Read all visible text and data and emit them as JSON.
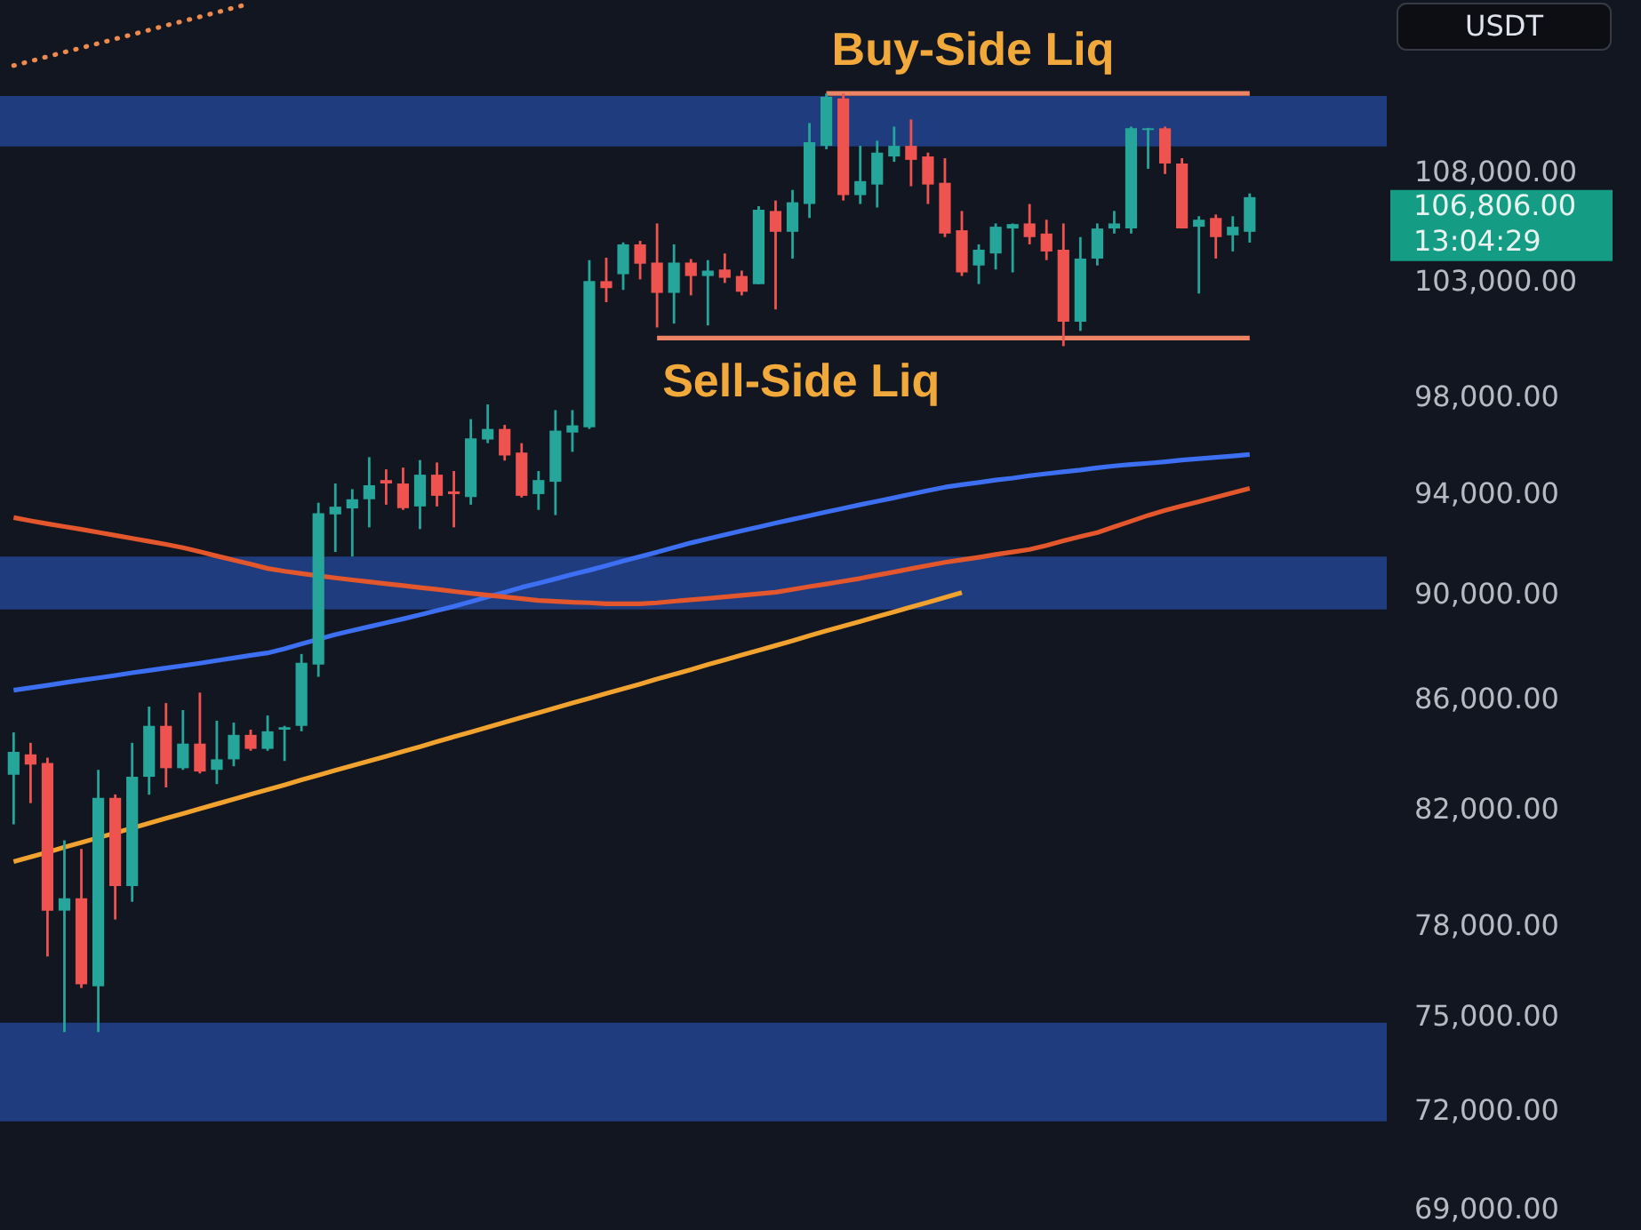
{
  "chart_data": {
    "type": "candlestick",
    "categories": [
      null,
      null,
      null,
      null,
      null,
      null,
      null,
      null,
      null,
      null,
      null,
      null,
      null,
      null,
      null,
      null,
      null,
      null,
      null,
      null,
      null,
      null,
      null,
      null,
      null,
      null,
      null,
      null,
      null,
      null,
      null,
      null,
      null,
      null,
      null,
      null,
      null,
      null,
      null,
      null,
      null,
      null,
      null,
      null,
      null,
      null,
      null,
      null,
      null,
      null,
      null,
      null,
      null,
      null,
      null,
      null,
      null,
      null,
      null,
      null,
      null,
      null,
      null,
      null,
      null,
      null,
      null,
      null,
      null,
      null,
      null,
      null,
      null,
      null
    ],
    "ohlc": [
      [
        83220,
        84760,
        81460,
        84050
      ],
      [
        83960,
        84380,
        82210,
        83590
      ],
      [
        83650,
        83840,
        76940,
        78480
      ],
      [
        78480,
        80900,
        74470,
        78900
      ],
      [
        78900,
        80600,
        75900,
        76020
      ],
      [
        75960,
        83400,
        74470,
        82400
      ],
      [
        82400,
        82520,
        78180,
        79320
      ],
      [
        79320,
        84380,
        78780,
        83150
      ],
      [
        83150,
        85710,
        82510,
        85000
      ],
      [
        85000,
        85840,
        82770,
        83460
      ],
      [
        83460,
        85580,
        83400,
        84350
      ],
      [
        84350,
        86230,
        83270,
        83340
      ],
      [
        83400,
        85190,
        82890,
        83780
      ],
      [
        83780,
        85120,
        83530,
        84670
      ],
      [
        84670,
        84860,
        84090,
        84160
      ],
      [
        84160,
        85380,
        84090,
        84800
      ],
      [
        84860,
        85000,
        83720,
        84950
      ],
      [
        85000,
        87680,
        84800,
        87350
      ],
      [
        87280,
        93600,
        86820,
        93180
      ],
      [
        93130,
        94380,
        91630,
        93440
      ],
      [
        93370,
        94150,
        91450,
        93740
      ],
      [
        93740,
        95460,
        92610,
        94310
      ],
      [
        94520,
        94960,
        93520,
        94380
      ],
      [
        94380,
        95030,
        93310,
        93380
      ],
      [
        93450,
        95340,
        92540,
        94740
      ],
      [
        94740,
        95240,
        93450,
        93880
      ],
      [
        94060,
        94890,
        92610,
        93950
      ],
      [
        93830,
        97040,
        93520,
        96240
      ],
      [
        96190,
        97660,
        96040,
        96630
      ],
      [
        96630,
        96800,
        95320,
        95530
      ],
      [
        95650,
        96040,
        93810,
        93880
      ],
      [
        93950,
        94890,
        93310,
        94520
      ],
      [
        94450,
        97420,
        93100,
        96560
      ],
      [
        96480,
        97420,
        95680,
        96780
      ],
      [
        96700,
        103940,
        96630,
        103000
      ],
      [
        103000,
        104050,
        102070,
        102690
      ],
      [
        103310,
        104740,
        102610,
        104650
      ],
      [
        104650,
        104810,
        103080,
        103780
      ],
      [
        103830,
        105600,
        100960,
        102480
      ],
      [
        102480,
        104650,
        101130,
        103830
      ],
      [
        103830,
        103990,
        102370,
        103230
      ],
      [
        103230,
        103940,
        101050,
        103470
      ],
      [
        103520,
        104240,
        102920,
        103150
      ],
      [
        103230,
        103470,
        102370,
        102530
      ],
      [
        102870,
        106390,
        102870,
        106230
      ],
      [
        106170,
        106650,
        101750,
        105220
      ],
      [
        105220,
        107140,
        104010,
        106570
      ],
      [
        106490,
        110280,
        105850,
        109370
      ],
      [
        109200,
        111700,
        109040,
        111540
      ],
      [
        111460,
        111700,
        106650,
        106900
      ],
      [
        106900,
        109200,
        106490,
        107550
      ],
      [
        107390,
        109440,
        106330,
        108880
      ],
      [
        108700,
        110110,
        108450,
        109200
      ],
      [
        109200,
        110450,
        107310,
        108540
      ],
      [
        108700,
        108880,
        106490,
        107390
      ],
      [
        107470,
        108620,
        104980,
        105140
      ],
      [
        105290,
        106170,
        103230,
        103390
      ],
      [
        103700,
        104650,
        102870,
        104410
      ],
      [
        104240,
        105600,
        103520,
        105450
      ],
      [
        105370,
        105600,
        103390,
        105570
      ],
      [
        105600,
        106490,
        104650,
        104980
      ],
      [
        105140,
        105770,
        103940,
        104330
      ],
      [
        104410,
        105600,
        100150,
        101210
      ],
      [
        101210,
        104980,
        100810,
        104010
      ],
      [
        104010,
        105600,
        103700,
        105370
      ],
      [
        105370,
        106170,
        105140,
        105600
      ],
      [
        105370,
        110110,
        105140,
        110030
      ],
      [
        109950,
        110050,
        108120,
        110030
      ],
      [
        110030,
        110110,
        107880,
        108370
      ],
      [
        108370,
        108620,
        105370,
        105370
      ],
      [
        105450,
        105930,
        102450,
        105770
      ],
      [
        105850,
        106010,
        104010,
        104980
      ],
      [
        105060,
        105930,
        104330,
        105450
      ],
      [
        105220,
        106980,
        104730,
        106806
      ]
    ],
    "colors": [
      "#26a69a",
      "#ef5350",
      "#ef5350",
      "#26a69a",
      "#ef5350",
      "#26a69a",
      "#ef5350",
      "#26a69a",
      "#26a69a",
      "#ef5350",
      "#26a69a",
      "#ef5350",
      "#26a69a",
      "#26a69a",
      "#ef5350",
      "#26a69a",
      "#26a69a",
      "#26a69a",
      "#26a69a",
      "#26a69a",
      "#26a69a",
      "#26a69a",
      "#ef5350",
      "#ef5350",
      "#26a69a",
      "#ef5350",
      "#ef5350",
      "#26a69a",
      "#26a69a",
      "#ef5350",
      "#ef5350",
      "#26a69a",
      "#26a69a",
      "#26a69a",
      "#26a69a",
      "#ef5350",
      "#26a69a",
      "#ef5350",
      "#ef5350",
      "#26a69a",
      "#ef5350",
      "#26a69a",
      "#ef5350",
      "#ef5350",
      "#26a69a",
      "#ef5350",
      "#26a69a",
      "#26a69a",
      "#26a69a",
      "#ef5350",
      "#26a69a",
      "#26a69a",
      "#26a69a",
      "#ef5350",
      "#ef5350",
      "#ef5350",
      "#ef5350",
      "#26a69a",
      "#26a69a",
      "#26a69a",
      "#ef5350",
      "#ef5350",
      "#ef5350",
      "#26a69a",
      "#26a69a",
      "#26a69a",
      "#26a69a",
      "#26a69a",
      "#ef5350",
      "#ef5350",
      "#26a69a",
      "#ef5350",
      "#26a69a",
      "#26a69a"
    ],
    "series": [
      {
        "type": "line",
        "color": "#3d6ff2",
        "values": [
          86320,
          86410,
          86500,
          86600,
          86690,
          86780,
          86870,
          86970,
          87060,
          87150,
          87240,
          87330,
          87430,
          87530,
          87630,
          87720,
          87880,
          88060,
          88240,
          88420,
          88570,
          88720,
          88870,
          89020,
          89180,
          89340,
          89500,
          89680,
          89870,
          90050,
          90240,
          90400,
          90570,
          90750,
          90910,
          91090,
          91270,
          91450,
          91620,
          91810,
          91990,
          92150,
          92310,
          92470,
          92620,
          92780,
          92930,
          93080,
          93230,
          93370,
          93520,
          93660,
          93800,
          93950,
          94090,
          94230,
          94330,
          94420,
          94520,
          94600,
          94700,
          94780,
          94860,
          94930,
          95020,
          95100,
          95160,
          95210,
          95270,
          95340,
          95400,
          95450,
          95510,
          95570
        ]
      },
      {
        "type": "line",
        "color": "#e4572c",
        "values": [
          93000,
          92870,
          92750,
          92640,
          92530,
          92410,
          92290,
          92170,
          92050,
          91930,
          91800,
          91640,
          91470,
          91310,
          91150,
          90980,
          90870,
          90780,
          90690,
          90610,
          90530,
          90460,
          90380,
          90310,
          90230,
          90160,
          90080,
          90010,
          89940,
          89870,
          89800,
          89730,
          89700,
          89660,
          89640,
          89600,
          89600,
          89600,
          89640,
          89700,
          89760,
          89810,
          89870,
          89930,
          89990,
          90050,
          90160,
          90270,
          90370,
          90480,
          90590,
          90720,
          90840,
          90970,
          91100,
          91220,
          91320,
          91420,
          91530,
          91630,
          91730,
          91890,
          92070,
          92240,
          92400,
          92630,
          92860,
          93090,
          93290,
          93470,
          93640,
          93820,
          94000,
          94180
        ]
      },
      {
        "type": "line",
        "color": "#f2a22e",
        "values": [
          80160,
          80320,
          80480,
          80660,
          80820,
          80990,
          81160,
          81330,
          81500,
          81670,
          81840,
          82010,
          82180,
          82350,
          82520,
          82690,
          82860,
          83040,
          83210,
          83380,
          83550,
          83720,
          83890,
          84070,
          84240,
          84420,
          84600,
          84770,
          84950,
          85130,
          85310,
          85480,
          85660,
          85840,
          86020,
          86200,
          86370,
          86550,
          86740,
          86910,
          87090,
          87280,
          87460,
          87640,
          87820,
          88000,
          88180,
          88380,
          88560,
          88740,
          88920,
          89110,
          89290,
          89480,
          89660,
          89850,
          90040,
          null,
          null,
          null,
          null,
          null,
          null,
          null,
          null,
          null,
          null,
          null,
          null,
          null,
          null,
          null,
          null,
          null
        ]
      },
      {
        "type": "line",
        "color": "#ee8a4e",
        "line_style": "dotted",
        "values": [
          113050,
          113270,
          113490,
          113710,
          113920,
          114140,
          114360,
          114580,
          114800,
          115030,
          115240,
          115460,
          115680,
          115910,
          116130,
          null,
          null,
          null,
          null,
          null,
          null,
          null,
          null,
          null,
          null,
          null,
          null,
          null,
          null,
          null,
          null,
          null,
          null,
          null,
          null,
          null,
          null,
          null,
          null,
          null,
          null,
          null,
          null,
          null,
          null,
          null,
          null,
          null,
          null,
          null,
          null,
          null,
          null,
          null,
          null,
          null,
          null,
          null,
          null,
          null,
          null,
          null,
          null,
          null,
          null,
          null,
          null,
          null,
          null,
          null,
          null,
          null,
          null,
          null
        ]
      },
      {
        "type": "line",
        "name": "Buy-Side Liq",
        "color": "#ec8465",
        "values": [
          null,
          null,
          null,
          null,
          null,
          null,
          null,
          null,
          null,
          null,
          null,
          null,
          null,
          null,
          null,
          null,
          null,
          null,
          null,
          null,
          null,
          null,
          null,
          null,
          null,
          null,
          null,
          null,
          null,
          null,
          null,
          null,
          null,
          null,
          null,
          null,
          null,
          null,
          null,
          null,
          null,
          null,
          null,
          null,
          null,
          null,
          null,
          null,
          111700,
          111700,
          111700,
          111700,
          111700,
          111700,
          111700,
          111700,
          111700,
          111700,
          111700,
          111700,
          111700,
          111700,
          111700,
          111700,
          111700,
          111700,
          111700,
          111700,
          111700,
          111700,
          111700,
          111700,
          111700,
          111700
        ]
      },
      {
        "type": "line",
        "name": "Sell-Side Liq",
        "color": "#ec8465",
        "values": [
          null,
          null,
          null,
          null,
          null,
          null,
          null,
          null,
          null,
          null,
          null,
          null,
          null,
          null,
          null,
          null,
          null,
          null,
          null,
          null,
          null,
          null,
          null,
          null,
          null,
          null,
          null,
          null,
          null,
          null,
          null,
          null,
          null,
          null,
          null,
          null,
          null,
          null,
          100500,
          100500,
          100500,
          100500,
          100500,
          100500,
          100500,
          100500,
          100500,
          100500,
          100500,
          100500,
          100500,
          100500,
          100500,
          100500,
          100500,
          100500,
          100500,
          100500,
          100500,
          100500,
          100500,
          100500,
          100500,
          100500,
          100500,
          100500,
          100500,
          100500,
          100500,
          100500,
          100500,
          100500,
          100500,
          100500
        ]
      }
    ],
    "bands": [
      {
        "axis": "y",
        "from": 109170,
        "to": 111580,
        "color": "#1f3d7e"
      },
      {
        "axis": "y",
        "from": 89380,
        "to": 91450,
        "color": "#1f3d7e"
      },
      {
        "axis": "y",
        "from": 71650,
        "to": 74770,
        "color": "#1f3d7e"
      }
    ],
    "ylim": [
      69000,
      116300
    ],
    "yticks": [
      {
        "value": 69000,
        "label": "69,000.00"
      },
      {
        "value": 72000,
        "label": "72,000.00"
      },
      {
        "value": 75000,
        "label": "75,000.00"
      },
      {
        "value": 78000,
        "label": "78,000.00"
      },
      {
        "value": 82000,
        "label": "82,000.00"
      },
      {
        "value": 86000,
        "label": "86,000.00"
      },
      {
        "value": 90000,
        "label": "90,000.00"
      },
      {
        "value": 94000,
        "label": "94,000.00"
      },
      {
        "value": 98000,
        "label": "98,000.00"
      },
      {
        "value": 103000,
        "label": "103,000.00"
      },
      {
        "value": 108000,
        "label": "108,000.00"
      }
    ],
    "log": "y",
    "tick_labels": "y",
    "annotations": [
      "106,806.00",
      "13:04:29",
      "USDT"
    ]
  }
}
